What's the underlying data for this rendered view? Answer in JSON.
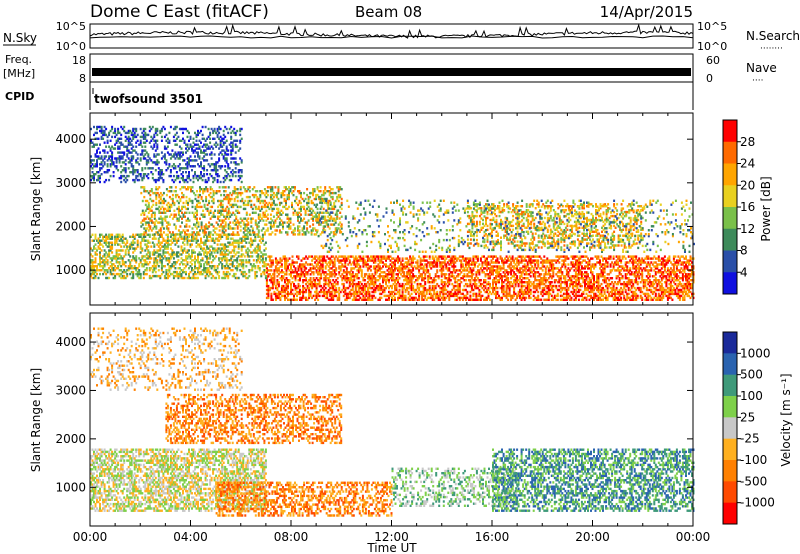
{
  "header": {
    "station": "Dome C East (fitACF)",
    "beam": "Beam 08",
    "date": "14/Apr/2015"
  },
  "nsky_panel": {
    "left_label": "N.Sky",
    "right_label": "N.Search",
    "right_legend": "········",
    "ticks_left": [
      "10^5",
      "10^0"
    ],
    "ticks_right": [
      "10^5",
      "10^0"
    ]
  },
  "freq_panel": {
    "left_label_line1": "Freq.",
    "left_label_line2": "[MHz]",
    "right_label": "Nave",
    "right_legend": "····",
    "ticks_left": [
      "18",
      "8"
    ],
    "ticks_right": [
      "60",
      "0"
    ]
  },
  "cpid_panel": {
    "left_label": "CPID",
    "program": "twofsound 3501"
  },
  "chart_data": [
    {
      "type": "heatmap",
      "name": "power",
      "ylabel": "Slant Range [km]",
      "xlabel": "",
      "ylim": [
        200,
        4600
      ],
      "yticks": [
        "1000",
        "2000",
        "3000",
        "4000"
      ],
      "colorbar": {
        "label": "Power [dB]",
        "ticks": [
          "28",
          "24",
          "20",
          "16",
          "12",
          "8",
          "4"
        ],
        "colors": [
          "#ff0000",
          "#ff6a00",
          "#ffa500",
          "#e8d020",
          "#7ac04a",
          "#3d8a5a",
          "#2a4fa8",
          "#1010e0"
        ]
      }
    },
    {
      "type": "heatmap",
      "name": "velocity",
      "ylabel": "Slant Range [km]",
      "xlabel": "Time UT",
      "ylim": [
        200,
        4600
      ],
      "yticks": [
        "1000",
        "2000",
        "3000",
        "4000"
      ],
      "xticks": [
        "00:00",
        "04:00",
        "08:00",
        "12:00",
        "16:00",
        "20:00",
        "00:00"
      ],
      "colorbar": {
        "label": "Velocity [m s⁻¹]",
        "ticks": [
          "1000",
          "500",
          "100",
          "25",
          "-25",
          "-100",
          "-500",
          "-1000"
        ],
        "colors": [
          "#1a2a9a",
          "#2a63b0",
          "#3f9a7a",
          "#7ed04a",
          "#c8c8c8",
          "#ffb020",
          "#ff8000",
          "#ff4a00",
          "#ff0000"
        ]
      }
    }
  ]
}
